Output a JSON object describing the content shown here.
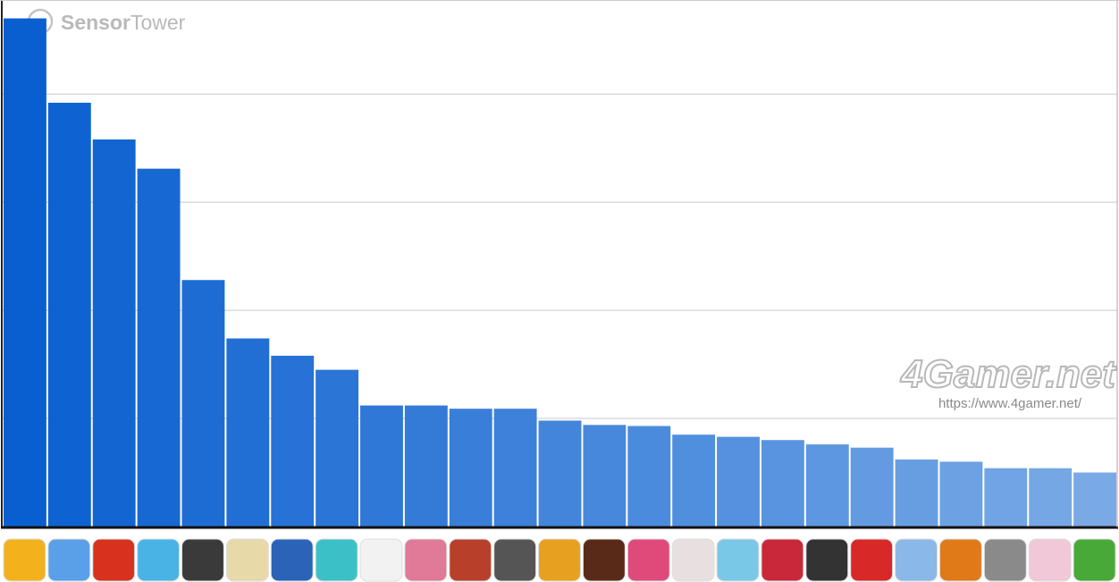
{
  "chart_data": {
    "type": "bar",
    "logo": [
      "Sensor",
      "Tower"
    ],
    "watermark": "4Gamer.net",
    "watermark_url": "https://www.4gamer.net/",
    "categories": [
      null,
      null,
      null,
      null,
      null,
      null,
      null,
      null,
      null,
      null,
      null,
      null,
      null,
      null,
      null,
      null,
      null,
      null,
      null,
      null,
      null,
      null,
      null,
      null,
      null
    ],
    "values": [
      4.7,
      3.92,
      3.58,
      3.31,
      2.28,
      1.74,
      1.58,
      1.45,
      1.12,
      1.12,
      1.09,
      1.09,
      0.98,
      0.94,
      0.93,
      0.85,
      0.83,
      0.8,
      0.76,
      0.73,
      0.62,
      0.6,
      0.54,
      0.54,
      0.5
    ],
    "colors": [
      "#0a5fd0",
      "#0f62d1",
      "#1365d2",
      "#1868d3",
      "#1d6cd4",
      "#216fd5",
      "#2672d6",
      "#2b75d6",
      "#2f78d7",
      "#347bd8",
      "#397ed9",
      "#3d81da",
      "#4285db",
      "#4788dc",
      "#4b8bdd",
      "#508ede",
      "#5591df",
      "#5994e0",
      "#5e97e1",
      "#639ae1",
      "#679ee2",
      "#6ca1e3",
      "#71a4e4",
      "#75a7e5",
      "#7aaae6"
    ],
    "ylim": [
      0,
      4.87
    ],
    "yticks": [
      0,
      1,
      2,
      3,
      4
    ],
    "grid": true
  }
}
